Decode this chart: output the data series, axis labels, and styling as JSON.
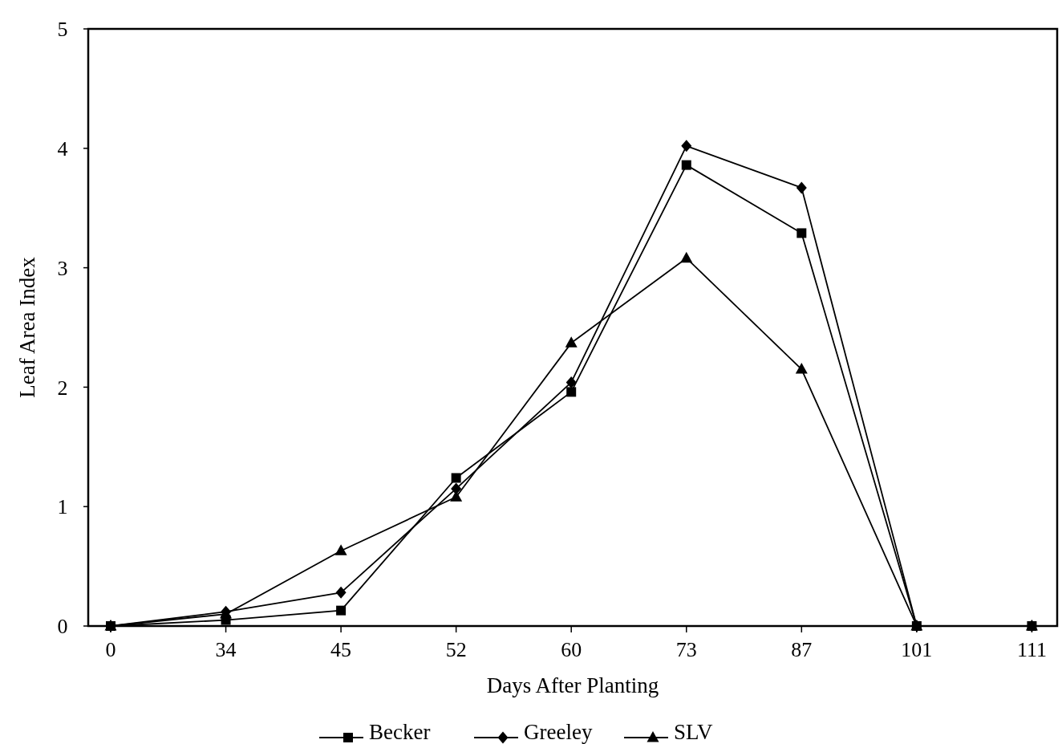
{
  "chart_data": {
    "type": "line",
    "xlabel": "Days After Planting",
    "ylabel": "Leaf Area Index",
    "categories": [
      "0",
      "34",
      "45",
      "52",
      "60",
      "73",
      "87",
      "101",
      "111"
    ],
    "ylim": [
      0,
      5
    ],
    "yticks": [
      0,
      1,
      2,
      3,
      4,
      5
    ],
    "grid": false,
    "legend": "bottom",
    "series": [
      {
        "name": "Becker",
        "color": "#000000",
        "marker": "square",
        "values": [
          0,
          0.05,
          0.13,
          1.24,
          1.96,
          3.86,
          3.29,
          0,
          0
        ]
      },
      {
        "name": "Greeley",
        "color": "#000000",
        "marker": "diamond",
        "values": [
          0,
          0.12,
          0.28,
          1.15,
          2.04,
          4.02,
          3.67,
          0,
          0
        ]
      },
      {
        "name": "SLV",
        "color": "#000000",
        "marker": "triangle",
        "values": [
          0,
          0.1,
          0.63,
          1.08,
          2.37,
          3.08,
          2.15,
          0,
          0
        ]
      }
    ]
  }
}
